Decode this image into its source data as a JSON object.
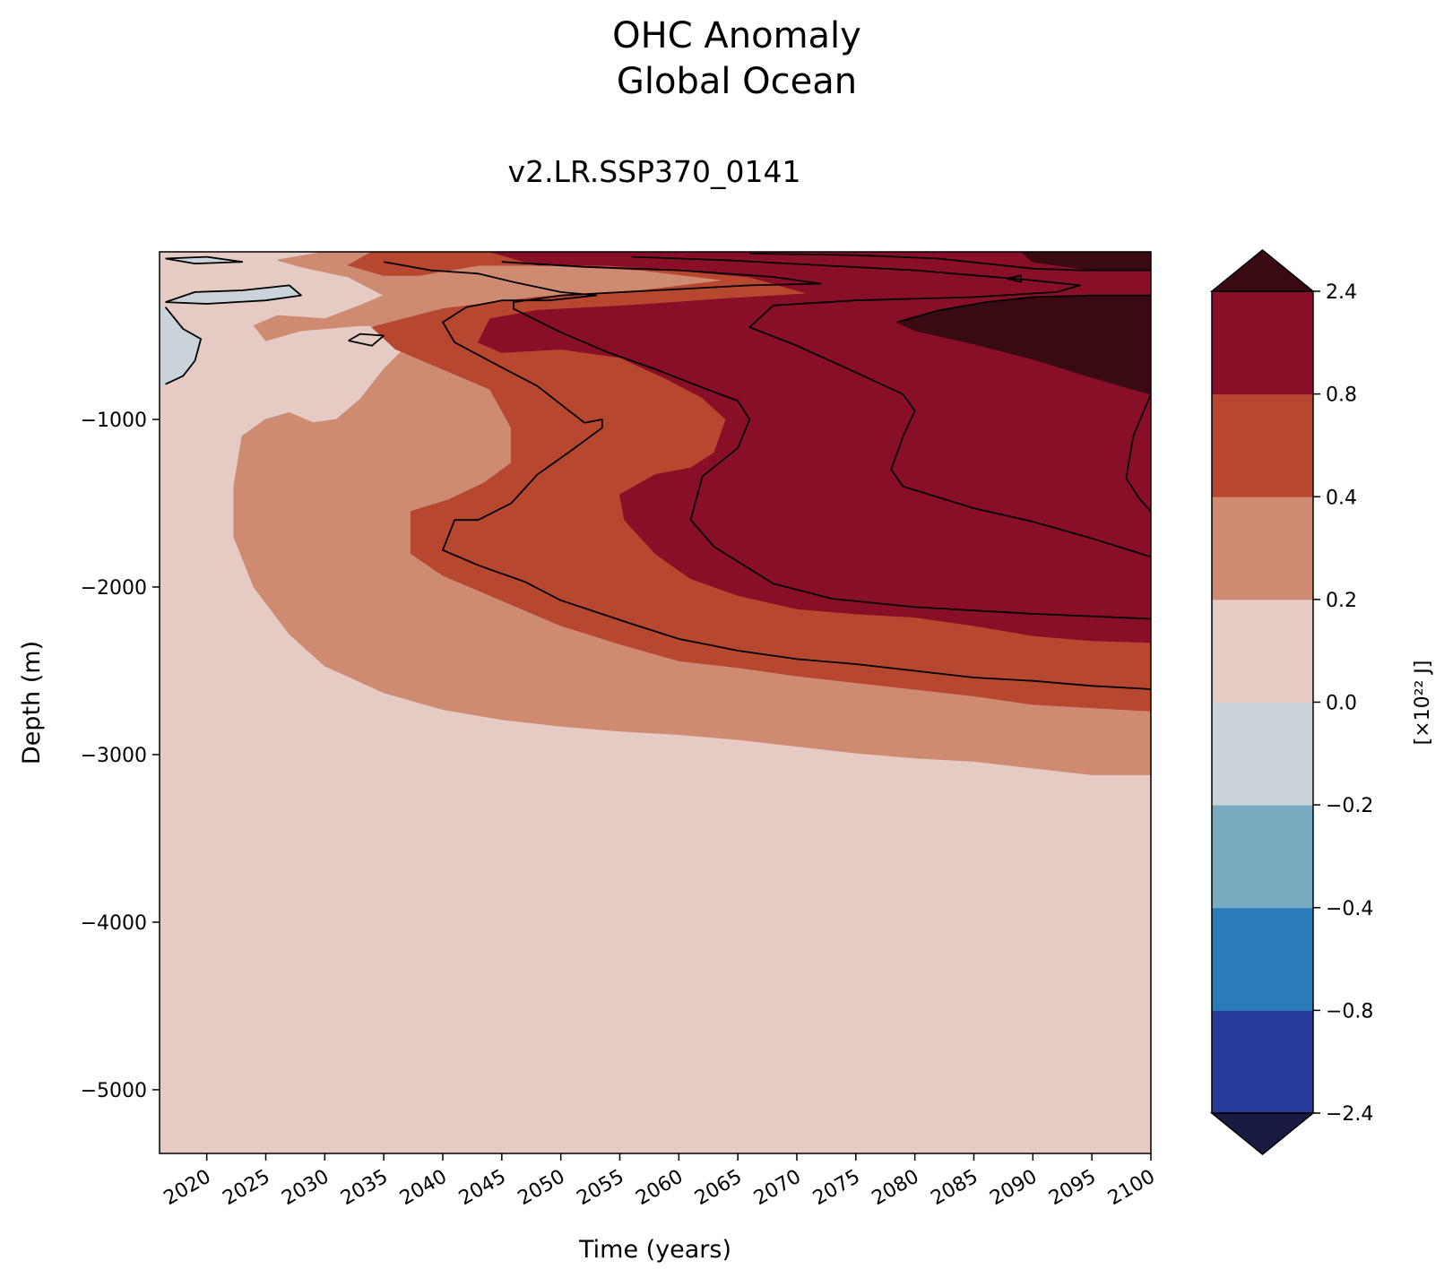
{
  "title_line1": "OHC Anomaly",
  "title_line2": "Global Ocean",
  "subtitle": "v2.LR.SSP370_0141",
  "chart_data": {
    "type": "heatmap",
    "title": "OHC Anomaly\nGlobal Ocean",
    "subtitle": "v2.LR.SSP370_0141",
    "xlabel": "Time (years)",
    "ylabel": "Depth (m)",
    "xlim": [
      2016,
      2100
    ],
    "ylim": [
      -5380,
      0
    ],
    "xticks": [
      2020,
      2025,
      2030,
      2035,
      2040,
      2045,
      2050,
      2055,
      2060,
      2065,
      2070,
      2075,
      2080,
      2085,
      2090,
      2095,
      2100
    ],
    "yticks": [
      -1000,
      -2000,
      -3000,
      -4000,
      -5000
    ],
    "ytick_labels": [
      "−1000",
      "−2000",
      "−3000",
      "−4000",
      "−5000"
    ],
    "colorbar": {
      "label": "[×10²² J]",
      "levels": [
        -2.4,
        -0.8,
        -0.4,
        -0.2,
        0.0,
        0.2,
        0.4,
        0.8,
        2.4
      ],
      "tick_labels": [
        "−2.4",
        "−0.8",
        "−0.4",
        "−0.2",
        "0.0",
        "0.2",
        "0.4",
        "0.8",
        "2.4"
      ],
      "colors": [
        "#273c9a",
        "#2a7bba",
        "#78aac0",
        "#cbd3da",
        "#e5cbc4",
        "#cf8b72",
        "#b84730",
        "#890f28"
      ],
      "under_color": "#191c42",
      "over_color": "#3a0a12",
      "extend": "both"
    },
    "regions": [
      {
        "band": "0.0 to 0.2",
        "color": "#e5cbc4",
        "polygon": [
          [
            2016,
            0
          ],
          [
            2100,
            0
          ],
          [
            2100,
            -5380
          ],
          [
            2016,
            -5380
          ]
        ]
      },
      {
        "band": "0.2 to 0.4",
        "color": "#cf8b72",
        "polygon": [
          [
            2030,
            0
          ],
          [
            2100,
            0
          ],
          [
            2100,
            -3120
          ],
          [
            2095,
            -3120
          ],
          [
            2090,
            -3080
          ],
          [
            2085,
            -3040
          ],
          [
            2080,
            -3020
          ],
          [
            2075,
            -2990
          ],
          [
            2070,
            -2950
          ],
          [
            2065,
            -2910
          ],
          [
            2060,
            -2880
          ],
          [
            2055,
            -2860
          ],
          [
            2050,
            -2830
          ],
          [
            2045,
            -2790
          ],
          [
            2040,
            -2730
          ],
          [
            2035,
            -2630
          ],
          [
            2030,
            -2470
          ],
          [
            2027,
            -2280
          ],
          [
            2024,
            -2000
          ],
          [
            2022.3,
            -1700
          ],
          [
            2022.3,
            -1400
          ],
          [
            2023,
            -1100
          ],
          [
            2025,
            -1000
          ],
          [
            2027,
            -960
          ],
          [
            2029,
            -1020
          ],
          [
            2031,
            -1000
          ],
          [
            2033,
            -880
          ],
          [
            2035,
            -700
          ],
          [
            2037,
            -560
          ],
          [
            2040,
            -450
          ],
          [
            2033,
            -440
          ],
          [
            2028,
            -470
          ],
          [
            2025,
            -530
          ],
          [
            2024,
            -440
          ],
          [
            2026,
            -380
          ],
          [
            2030,
            -400
          ],
          [
            2033,
            -320
          ],
          [
            2035,
            -260
          ],
          [
            2032,
            -150
          ],
          [
            2028,
            -90
          ],
          [
            2026,
            -50
          ],
          [
            2030,
            0
          ]
        ]
      },
      {
        "band": "0.4 to 0.8",
        "color": "#b84730",
        "polygon": [
          [
            2034,
            0
          ],
          [
            2100,
            0
          ],
          [
            2100,
            -2740
          ],
          [
            2095,
            -2720
          ],
          [
            2090,
            -2700
          ],
          [
            2085,
            -2650
          ],
          [
            2080,
            -2610
          ],
          [
            2075,
            -2570
          ],
          [
            2070,
            -2530
          ],
          [
            2065,
            -2480
          ],
          [
            2060,
            -2440
          ],
          [
            2055,
            -2340
          ],
          [
            2050,
            -2230
          ],
          [
            2045,
            -2080
          ],
          [
            2040,
            -1930
          ],
          [
            2037.3,
            -1800
          ],
          [
            2037.3,
            -1550
          ],
          [
            2040.5,
            -1480
          ],
          [
            2043.5,
            -1380
          ],
          [
            2045.8,
            -1260
          ],
          [
            2045.8,
            -1050
          ],
          [
            2044,
            -820
          ],
          [
            2040,
            -700
          ],
          [
            2036,
            -580
          ],
          [
            2034,
            -450
          ],
          [
            2040,
            -340
          ],
          [
            2048,
            -270
          ],
          [
            2057,
            -230
          ],
          [
            2064,
            -170
          ],
          [
            2057,
            -110
          ],
          [
            2050,
            -80
          ],
          [
            2043,
            -80
          ],
          [
            2038,
            -140
          ],
          [
            2035,
            -140
          ],
          [
            2032,
            -80
          ],
          [
            2034,
            0
          ]
        ]
      },
      {
        "band": "0.8 to 2.4",
        "color": "#890f28",
        "polygon": [
          [
            2044,
            0
          ],
          [
            2100,
            0
          ],
          [
            2100,
            -2330
          ],
          [
            2095,
            -2320
          ],
          [
            2090,
            -2290
          ],
          [
            2085,
            -2230
          ],
          [
            2080,
            -2180
          ],
          [
            2075,
            -2160
          ],
          [
            2070,
            -2130
          ],
          [
            2065,
            -2050
          ],
          [
            2061,
            -1950
          ],
          [
            2058,
            -1800
          ],
          [
            2055.4,
            -1600
          ],
          [
            2055,
            -1450
          ],
          [
            2058,
            -1330
          ],
          [
            2061,
            -1290
          ],
          [
            2063,
            -1200
          ],
          [
            2064,
            -1000
          ],
          [
            2062,
            -870
          ],
          [
            2059,
            -760
          ],
          [
            2055,
            -630
          ],
          [
            2050,
            -580
          ],
          [
            2045,
            -600
          ],
          [
            2043,
            -540
          ],
          [
            2044,
            -400
          ],
          [
            2048,
            -350
          ],
          [
            2056,
            -320
          ],
          [
            2064,
            -280
          ],
          [
            2071,
            -250
          ],
          [
            2066,
            -150
          ],
          [
            2060,
            -110
          ],
          [
            2054,
            -80
          ],
          [
            2048,
            -80
          ],
          [
            2044,
            0
          ]
        ]
      },
      {
        "band": "> 2.4",
        "color": "#3a0a12",
        "polygon": [
          [
            2078.5,
            -420
          ],
          [
            2082,
            -350
          ],
          [
            2086,
            -300
          ],
          [
            2090,
            -270
          ],
          [
            2095,
            -260
          ],
          [
            2100,
            -260
          ],
          [
            2100,
            -850
          ],
          [
            2095,
            -750
          ],
          [
            2090,
            -640
          ],
          [
            2085,
            -550
          ],
          [
            2080,
            -470
          ]
        ]
      },
      {
        "band": "> 2.4",
        "color": "#3a0a12",
        "polygon": [
          [
            2089,
            0
          ],
          [
            2100,
            0
          ],
          [
            2100,
            -110
          ],
          [
            2095,
            -110
          ],
          [
            2090,
            -60
          ]
        ]
      },
      {
        "band": "-0.2 to 0.0",
        "color": "#cbd3da",
        "polygon": [
          [
            2016.5,
            -330
          ],
          [
            2018,
            -460
          ],
          [
            2019.5,
            -520
          ],
          [
            2019,
            -650
          ],
          [
            2018,
            -740
          ],
          [
            2016.5,
            -790
          ],
          [
            2016,
            -800
          ],
          [
            2016,
            -330
          ]
        ]
      },
      {
        "band": "-0.2 to 0.0",
        "color": "#cbd3da",
        "polygon": [
          [
            2016.5,
            -300
          ],
          [
            2019,
            -240
          ],
          [
            2023,
            -230
          ],
          [
            2027,
            -200
          ],
          [
            2028,
            -260
          ],
          [
            2025,
            -290
          ],
          [
            2020,
            -310
          ],
          [
            2016.5,
            -300
          ]
        ]
      },
      {
        "band": "-0.2 to 0.0",
        "color": "#cbd3da",
        "polygon": [
          [
            2016.5,
            -40
          ],
          [
            2020,
            -30
          ],
          [
            2023,
            -60
          ],
          [
            2019,
            -70
          ],
          [
            2016.5,
            -40
          ]
        ]
      }
    ],
    "contour_lines": [
      [
        [
          2016.5,
          -300
        ],
        [
          2019,
          -240
        ],
        [
          2023,
          -230
        ],
        [
          2027,
          -200
        ],
        [
          2028,
          -260
        ],
        [
          2025,
          -290
        ],
        [
          2020,
          -310
        ],
        [
          2016.5,
          -300
        ]
      ],
      [
        [
          2016.5,
          -330
        ],
        [
          2018,
          -460
        ],
        [
          2019.5,
          -520
        ],
        [
          2019,
          -650
        ],
        [
          2018,
          -740
        ],
        [
          2016.5,
          -790
        ]
      ],
      [
        [
          2016.5,
          -40
        ],
        [
          2020,
          -30
        ],
        [
          2023,
          -60
        ],
        [
          2019,
          -70
        ],
        [
          2016.5,
          -40
        ]
      ],
      [
        [
          2032,
          -530
        ],
        [
          2033,
          -490
        ],
        [
          2035,
          -500
        ],
        [
          2034,
          -560
        ],
        [
          2032,
          -530
        ]
      ],
      [
        [
          2035,
          -60
        ],
        [
          2039,
          -110
        ],
        [
          2043,
          -130
        ],
        [
          2046,
          -180
        ],
        [
          2050,
          -240
        ],
        [
          2053,
          -260
        ],
        [
          2049,
          -290
        ],
        [
          2045,
          -290
        ],
        [
          2042,
          -330
        ],
        [
          2040,
          -420
        ],
        [
          2041,
          -540
        ],
        [
          2045,
          -690
        ],
        [
          2048,
          -800
        ],
        [
          2050,
          -910
        ],
        [
          2052,
          -1020
        ],
        [
          2053.5,
          -1000
        ],
        [
          2053.5,
          -1050
        ],
        [
          2051,
          -1180
        ],
        [
          2048,
          -1330
        ],
        [
          2045.8,
          -1500
        ],
        [
          2043,
          -1600
        ],
        [
          2041,
          -1600
        ],
        [
          2040,
          -1780
        ],
        [
          2043,
          -1870
        ],
        [
          2047,
          -1970
        ],
        [
          2050,
          -2080
        ],
        [
          2056,
          -2220
        ],
        [
          2060,
          -2310
        ],
        [
          2065,
          -2380
        ],
        [
          2070,
          -2430
        ],
        [
          2075,
          -2460
        ],
        [
          2080,
          -2500
        ],
        [
          2085,
          -2540
        ],
        [
          2090,
          -2560
        ],
        [
          2095,
          -2590
        ],
        [
          2100,
          -2610
        ]
      ],
      [
        [
          2045,
          -60
        ],
        [
          2052,
          -90
        ],
        [
          2060,
          -110
        ],
        [
          2068,
          -150
        ],
        [
          2072,
          -190
        ],
        [
          2066,
          -200
        ],
        [
          2058,
          -230
        ],
        [
          2050,
          -260
        ],
        [
          2046,
          -300
        ],
        [
          2046,
          -340
        ],
        [
          2050,
          -480
        ],
        [
          2054,
          -600
        ],
        [
          2058,
          -700
        ],
        [
          2062,
          -810
        ],
        [
          2065,
          -890
        ],
        [
          2066,
          -1000
        ],
        [
          2065,
          -1170
        ],
        [
          2062,
          -1340
        ],
        [
          2061,
          -1600
        ],
        [
          2063,
          -1760
        ],
        [
          2068,
          -1980
        ],
        [
          2073,
          -2070
        ],
        [
          2080,
          -2120
        ],
        [
          2090,
          -2160
        ],
        [
          2100,
          -2190
        ]
      ],
      [
        [
          2056,
          -30
        ],
        [
          2064,
          -50
        ],
        [
          2072,
          -80
        ],
        [
          2080,
          -110
        ],
        [
          2085,
          -140
        ],
        [
          2090,
          -170
        ],
        [
          2094,
          -200
        ],
        [
          2092,
          -240
        ],
        [
          2085,
          -270
        ],
        [
          2075,
          -290
        ],
        [
          2068,
          -320
        ],
        [
          2066,
          -450
        ],
        [
          2070,
          -560
        ],
        [
          2075,
          -720
        ],
        [
          2079,
          -850
        ],
        [
          2080,
          -950
        ],
        [
          2079,
          -1100
        ],
        [
          2078,
          -1300
        ],
        [
          2079,
          -1400
        ],
        [
          2085,
          -1530
        ],
        [
          2090,
          -1610
        ],
        [
          2095,
          -1710
        ],
        [
          2100,
          -1820
        ]
      ],
      [
        [
          2066,
          -10
        ],
        [
          2075,
          -20
        ],
        [
          2082,
          -40
        ],
        [
          2086,
          -70
        ],
        [
          2090,
          -100
        ],
        [
          2094,
          -110
        ],
        [
          2100,
          -110
        ]
      ],
      [
        [
          2087.8,
          -160
        ],
        [
          2089,
          -140
        ],
        [
          2089,
          -180
        ],
        [
          2087.8,
          -160
        ]
      ],
      [
        [
          2078.5,
          -420
        ],
        [
          2082,
          -350
        ],
        [
          2086,
          -300
        ],
        [
          2090,
          -270
        ],
        [
          2095,
          -260
        ],
        [
          2100,
          -260
        ]
      ],
      [
        [
          2100,
          -850
        ],
        [
          2098.5,
          -1100
        ],
        [
          2097.9,
          -1350
        ],
        [
          2099,
          -1470
        ],
        [
          2100,
          -1550
        ]
      ]
    ]
  }
}
